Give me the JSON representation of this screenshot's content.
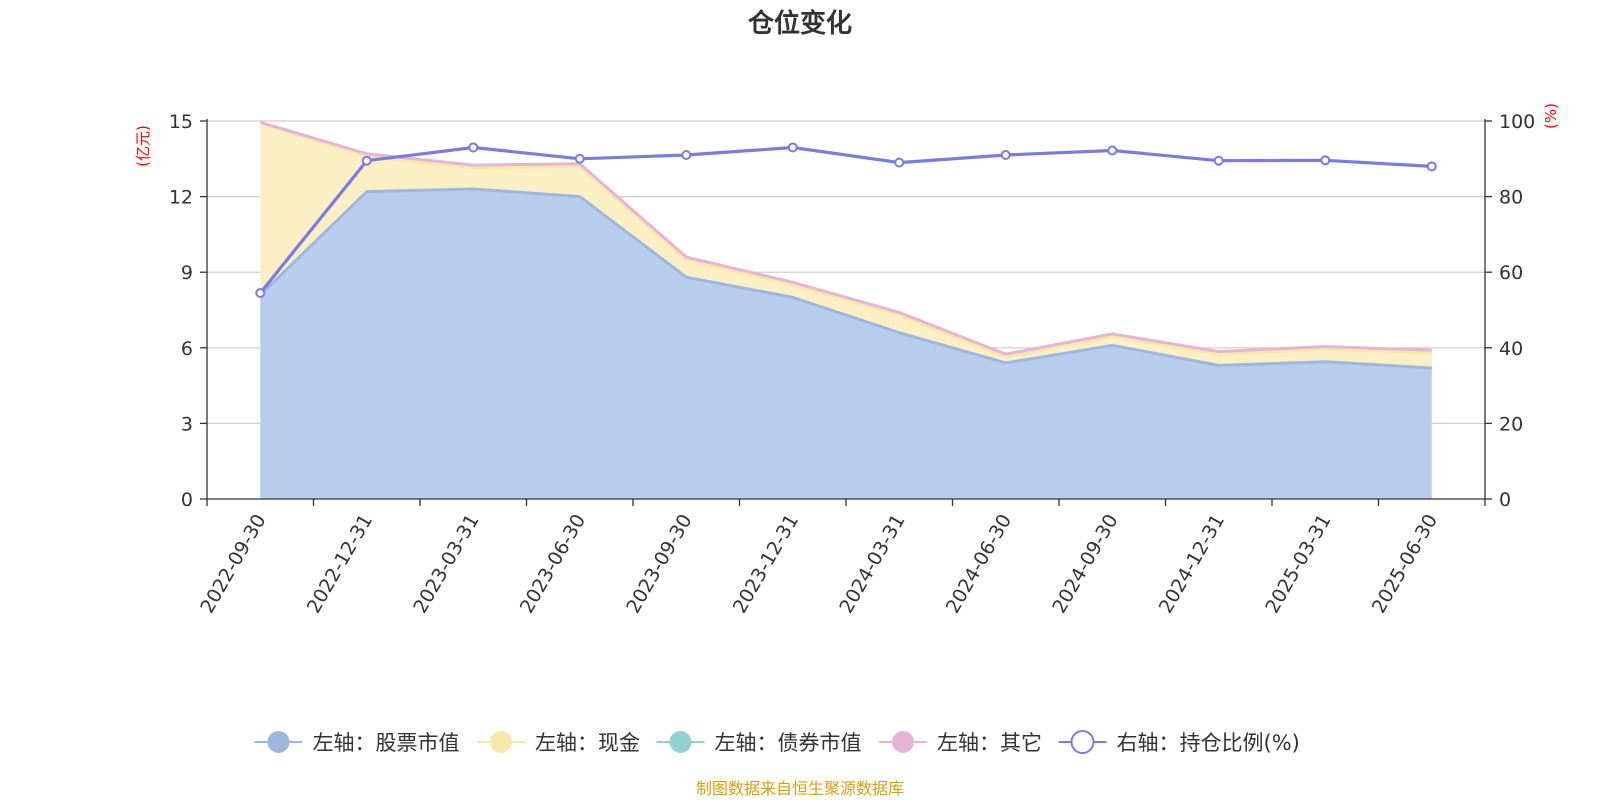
{
  "chart_data": {
    "type": "area",
    "title": "仓位变化",
    "source": "制图数据来自恒生聚源数据库",
    "left_axis": {
      "unit": "(亿元)",
      "ylim": [
        0,
        15
      ],
      "ticks": [
        "0",
        "3",
        "6",
        "9",
        "12",
        "15"
      ]
    },
    "right_axis": {
      "unit": "(%)",
      "ylim": [
        0,
        100
      ],
      "ticks": [
        "0",
        "20",
        "40",
        "60",
        "80",
        "100"
      ]
    },
    "categories": [
      "2022-09-30",
      "2022-12-31",
      "2023-03-31",
      "2023-06-30",
      "2023-09-30",
      "2023-12-31",
      "2024-03-31",
      "2024-06-30",
      "2024-09-30",
      "2024-12-31",
      "2025-03-31",
      "2025-06-30"
    ],
    "series": [
      {
        "name": "左轴：股票市值",
        "axis": "left",
        "stack": true,
        "color": "#9db7e0",
        "fill": "#b8cdeb",
        "values": [
          8.1,
          12.2,
          12.3,
          12.0,
          8.8,
          8.0,
          6.6,
          5.4,
          6.1,
          5.3,
          5.45,
          5.2
        ]
      },
      {
        "name": "左轴：现金",
        "axis": "left",
        "stack": true,
        "color": "#f8e7a8",
        "fill": "#fbefc3",
        "values": [
          6.8,
          1.4,
          0.85,
          1.2,
          0.7,
          0.5,
          0.7,
          0.25,
          0.35,
          0.45,
          0.5,
          0.6
        ]
      },
      {
        "name": "左轴：债券市值",
        "axis": "left",
        "stack": true,
        "color": "#92d0d3",
        "fill": "#a8dadc",
        "values": [
          0,
          0,
          0,
          0,
          0,
          0,
          0,
          0,
          0,
          0,
          0,
          0
        ]
      },
      {
        "name": "左轴：其它",
        "axis": "left",
        "stack": true,
        "color": "#e6b5d6",
        "fill": "#f0cde6",
        "values": [
          0.05,
          0.1,
          0.1,
          0.1,
          0.1,
          0.1,
          0.1,
          0.1,
          0.1,
          0.1,
          0.1,
          0.1
        ]
      },
      {
        "name": "右轴：持仓比例(%)",
        "axis": "right",
        "type": "line",
        "color": "#7b7be8",
        "values": [
          54.5,
          89.5,
          93,
          90,
          91,
          93,
          89,
          91,
          92.2,
          89.5,
          89.6,
          88
        ]
      }
    ],
    "grid": true,
    "legend_position": "bottom"
  }
}
